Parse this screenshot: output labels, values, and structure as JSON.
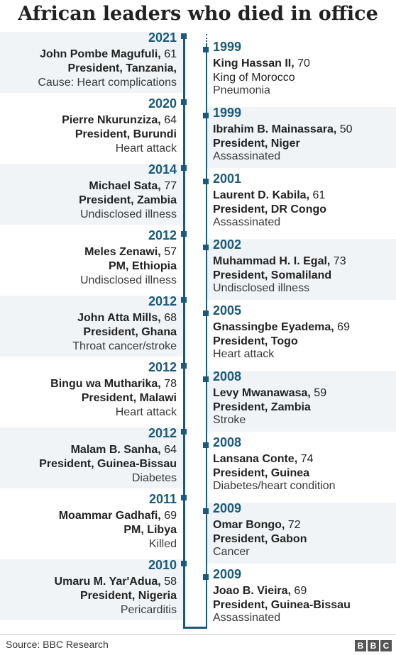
{
  "title": "African leaders who died in office",
  "source": "Source: BBC Research",
  "logo": [
    "B",
    "B",
    "C"
  ],
  "colors": {
    "accent": "#1b5a7a",
    "band": "#f0f4f7",
    "text": "#222222"
  },
  "chart_data": {
    "type": "table",
    "title": "African leaders who died in office",
    "left_column": [
      {
        "year": "2021",
        "name": "John Pombe Magufuli,",
        "age": " 61",
        "role": "President, Tanzania,",
        "cause": "Cause: Heart complications"
      },
      {
        "year": "2020",
        "name": "Pierre Nkurunziza,",
        "age": " 64",
        "role": "President, Burundi",
        "cause": "Heart attack"
      },
      {
        "year": "2014",
        "name": "Michael Sata,",
        "age": " 77",
        "role": "President, Zambia",
        "cause": "Undisclosed illness"
      },
      {
        "year": "2012",
        "name": "Meles Zenawi,",
        "age": " 57",
        "role": "PM, Ethiopia",
        "cause": "Undisclosed illness"
      },
      {
        "year": "2012",
        "name": "John Atta Mills,",
        "age": " 68",
        "role": "President, Ghana",
        "cause": "Throat cancer/stroke"
      },
      {
        "year": "2012",
        "name": "Bingu wa Mutharika,",
        "age": " 78",
        "role": "President, Malawi",
        "cause": "Heart attack"
      },
      {
        "year": "2012",
        "name": "Malam B. Sanha,",
        "age": " 64",
        "role": "President, Guinea-Bissau",
        "cause": "Diabetes"
      },
      {
        "year": "2011",
        "name": "Moammar Gadhafi,",
        "age": " 69",
        "role": "PM, Libya",
        "cause": "Killed"
      },
      {
        "year": "2010",
        "name": "Umaru M. Yar'Adua,",
        "age": " 58",
        "role": "President, Nigeria",
        "cause": "Pericarditis"
      }
    ],
    "right_column": [
      {
        "year": "1999",
        "name": "King Hassan II,",
        "age": " 70",
        "role": "King of Morocco",
        "cause": "Pneumonia",
        "role_bold": false
      },
      {
        "year": "1999",
        "name": "Ibrahim B. Mainassara,",
        "age": " 50",
        "role": "President, Niger",
        "cause": "Assassinated",
        "role_bold": true
      },
      {
        "year": "2001",
        "name": "Laurent D. Kabila,",
        "age": " 61",
        "role": "President, DR Congo",
        "cause": "Assassinated",
        "role_bold": true
      },
      {
        "year": "2002",
        "name": "Muhammad H. I. Egal,",
        "age": " 73",
        "role": "President, Somaliland",
        "cause": "Undisclosed illness",
        "role_bold": true
      },
      {
        "year": "2005",
        "name": "Gnassingbe Eyadema,",
        "age": " 69",
        "role": "President, Togo",
        "cause": "Heart attack",
        "role_bold": true
      },
      {
        "year": "2008",
        "name": "Levy Mwanawasa,",
        "age": " 59",
        "role": "President, Zambia",
        "cause": "Stroke",
        "role_bold": true
      },
      {
        "year": "2008",
        "name": "Lansana Conte,",
        "age": " 74",
        "role": "President, Guinea",
        "cause": "Diabetes/heart condition",
        "role_bold": true
      },
      {
        "year": "2009",
        "name": "Omar Bongo,",
        "age": " 72",
        "role": "President, Gabon",
        "cause": "Cancer",
        "role_bold": true
      },
      {
        "year": "2009",
        "name": "Joao B. Vieira,",
        "age": " 69",
        "role": "President, Guinea-Bissau",
        "cause": "Assassinated",
        "role_bold": true
      }
    ]
  }
}
